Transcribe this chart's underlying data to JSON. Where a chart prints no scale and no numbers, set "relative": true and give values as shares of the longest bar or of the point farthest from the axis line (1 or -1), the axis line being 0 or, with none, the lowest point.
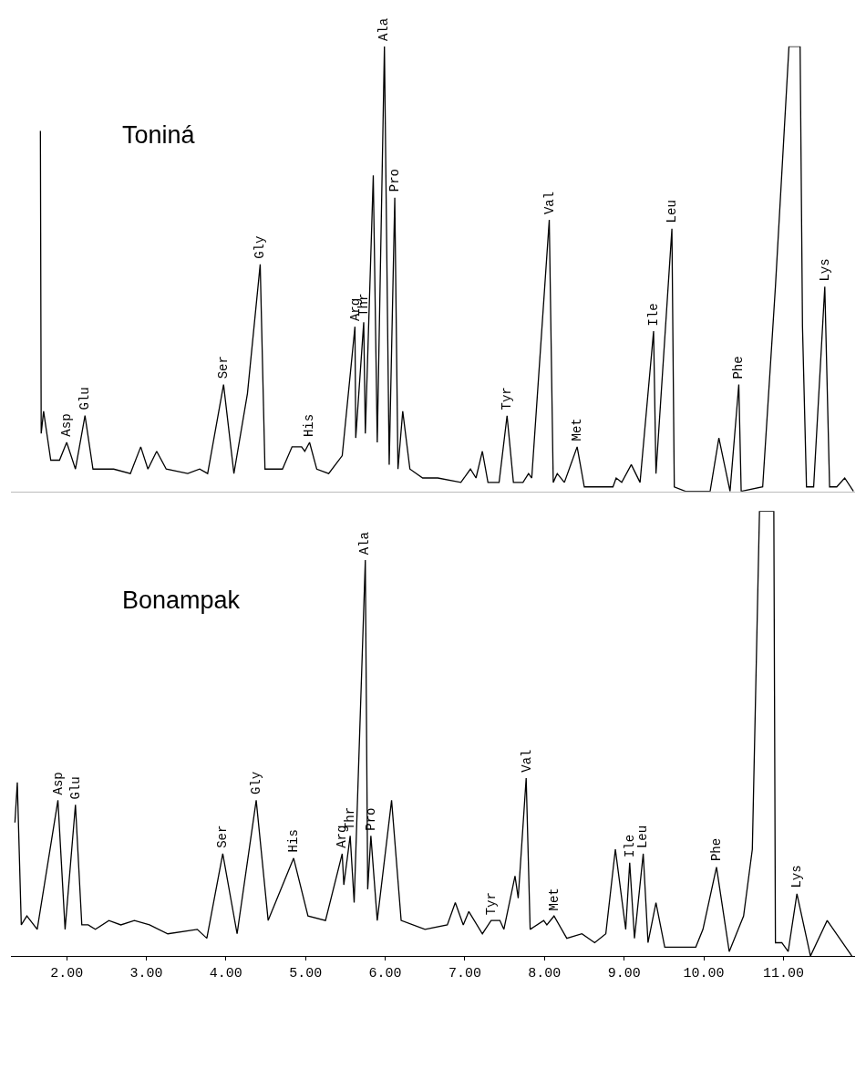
{
  "chart_data": [
    {
      "type": "line",
      "title": "Toniná",
      "relative": true,
      "color": "#000000",
      "xlim": [
        1.3,
        11.9
      ],
      "tick_labels": false,
      "x": [
        1.67,
        1.68,
        1.71,
        1.8,
        1.91,
        2.0,
        2.11,
        2.23,
        2.33,
        2.59,
        2.8,
        2.93,
        3.02,
        3.13,
        3.25,
        3.52,
        3.67,
        3.77,
        3.97,
        4.1,
        4.27,
        4.43,
        4.49,
        4.71,
        4.83,
        4.95,
        4.99,
        5.05,
        5.14,
        5.29,
        5.46,
        5.62,
        5.63,
        5.73,
        5.75,
        5.85,
        5.9,
        5.99,
        6.05,
        6.12,
        6.16,
        6.22,
        6.31,
        6.47,
        6.66,
        6.95,
        7.07,
        7.14,
        7.22,
        7.29,
        7.43,
        7.53,
        7.61,
        7.73,
        7.8,
        7.84,
        8.06,
        8.11,
        8.16,
        8.25,
        8.41,
        8.5,
        8.59,
        8.86,
        8.9,
        8.97,
        9.09,
        9.2,
        9.37,
        9.4,
        9.6,
        9.63,
        9.77,
        10.08,
        10.19,
        10.33,
        10.44,
        10.47,
        10.74,
        10.9,
        11.07,
        11.21,
        11.24,
        11.29,
        11.38,
        11.52,
        11.58,
        11.67,
        11.77,
        11.88
      ],
      "values": [
        0.81,
        0.13,
        0.18,
        0.07,
        0.07,
        0.11,
        0.05,
        0.17,
        0.05,
        0.05,
        0.04,
        0.1,
        0.05,
        0.09,
        0.05,
        0.04,
        0.05,
        0.04,
        0.24,
        0.04,
        0.22,
        0.51,
        0.05,
        0.05,
        0.1,
        0.1,
        0.09,
        0.11,
        0.05,
        0.04,
        0.08,
        0.37,
        0.12,
        0.38,
        0.13,
        0.71,
        0.11,
        1,
        0.06,
        0.66,
        0.05,
        0.18,
        0.05,
        0.03,
        0.03,
        0.02,
        0.05,
        0.03,
        0.09,
        0.02,
        0.02,
        0.17,
        0.02,
        0.02,
        0.04,
        0.03,
        0.61,
        0.02,
        0.04,
        0.02,
        0.1,
        0.01,
        0.01,
        0.01,
        0.03,
        0.02,
        0.06,
        0.02,
        0.36,
        0.04,
        0.59,
        0.01,
        0,
        0,
        0.12,
        0,
        0.24,
        0,
        0.01,
        0.46,
        1,
        1,
        0.37,
        0.01,
        0.01,
        0.46,
        0.01,
        0.01,
        0.03,
        0
      ],
      "annotations": [
        {
          "text": "Asp",
          "x": 2.0,
          "y": 0.11
        },
        {
          "text": "Glu",
          "x": 2.23,
          "y": 0.17
        },
        {
          "text": "Ser",
          "x": 3.97,
          "y": 0.24
        },
        {
          "text": "Gly",
          "x": 4.43,
          "y": 0.51
        },
        {
          "text": "His",
          "x": 5.05,
          "y": 0.11
        },
        {
          "text": "Arg",
          "x": 5.62,
          "y": 0.37
        },
        {
          "text": "Thr",
          "x": 5.73,
          "y": 0.38
        },
        {
          "text": "Ala",
          "x": 5.99,
          "y": 1
        },
        {
          "text": "Pro",
          "x": 6.12,
          "y": 0.66
        },
        {
          "text": "Tyr",
          "x": 7.53,
          "y": 0.17
        },
        {
          "text": "Val",
          "x": 8.06,
          "y": 0.61
        },
        {
          "text": "Met",
          "x": 8.41,
          "y": 0.1
        },
        {
          "text": "Ile",
          "x": 9.37,
          "y": 0.36
        },
        {
          "text": "Leu",
          "x": 9.6,
          "y": 0.59
        },
        {
          "text": "Phe",
          "x": 10.44,
          "y": 0.24
        },
        {
          "text": "Lys",
          "x": 11.52,
          "y": 0.46
        }
      ]
    },
    {
      "type": "line",
      "title": "Bonampak",
      "relative": true,
      "color": "#000000",
      "xlim": [
        1.3,
        11.9
      ],
      "tick_labels": "x",
      "xticks": [
        {
          "value": 2,
          "label": "2.00"
        },
        {
          "value": 3,
          "label": "3.00"
        },
        {
          "value": 4,
          "label": "4.00"
        },
        {
          "value": 5,
          "label": "5.00"
        },
        {
          "value": 6,
          "label": "6.00"
        },
        {
          "value": 7,
          "label": "7.00"
        },
        {
          "value": 8,
          "label": "8.00"
        },
        {
          "value": 9,
          "label": "9.00"
        },
        {
          "value": 10,
          "label": "10.00"
        },
        {
          "value": 11,
          "label": "11.00"
        }
      ],
      "x": [
        1.35,
        1.38,
        1.43,
        1.5,
        1.63,
        1.89,
        1.98,
        2.11,
        2.19,
        2.27,
        2.36,
        2.53,
        2.68,
        2.85,
        3.04,
        3.27,
        3.64,
        3.76,
        3.96,
        4.14,
        4.38,
        4.53,
        4.85,
        5.03,
        5.25,
        5.46,
        5.48,
        5.56,
        5.61,
        5.75,
        5.78,
        5.82,
        5.9,
        6.08,
        6.2,
        6.5,
        6.78,
        6.88,
        6.98,
        7.05,
        7.22,
        7.33,
        7.44,
        7.49,
        7.63,
        7.67,
        7.77,
        7.82,
        7.99,
        8.03,
        8.12,
        8.28,
        8.47,
        8.63,
        8.77,
        8.89,
        9.02,
        9.07,
        9.13,
        9.24,
        9.3,
        9.4,
        9.51,
        9.9,
        9.99,
        10.16,
        10.32,
        10.5,
        10.61,
        10.7,
        10.88,
        10.9,
        10.98,
        11.06,
        11.17,
        11.34,
        11.55,
        11.86
      ],
      "values": [
        0.3,
        0.39,
        0.07,
        0.09,
        0.06,
        0.35,
        0.06,
        0.34,
        0.07,
        0.07,
        0.06,
        0.08,
        0.07,
        0.08,
        0.07,
        0.05,
        0.06,
        0.04,
        0.23,
        0.05,
        0.35,
        0.08,
        0.22,
        0.09,
        0.08,
        0.23,
        0.16,
        0.27,
        0.12,
        0.89,
        0.15,
        0.27,
        0.08,
        0.35,
        0.08,
        0.06,
        0.07,
        0.12,
        0.07,
        0.1,
        0.05,
        0.08,
        0.08,
        0.06,
        0.18,
        0.13,
        0.4,
        0.06,
        0.08,
        0.07,
        0.09,
        0.04,
        0.05,
        0.03,
        0.05,
        0.24,
        0.06,
        0.21,
        0.04,
        0.23,
        0.03,
        0.12,
        0.02,
        0.02,
        0.06,
        0.2,
        0.01,
        0.09,
        0.24,
        1,
        1,
        0.03,
        0.03,
        0.01,
        0.14,
        0,
        0.08,
        0
      ],
      "annotations": [
        {
          "text": "Asp",
          "x": 1.89,
          "y": 0.35
        },
        {
          "text": "Glu",
          "x": 2.11,
          "y": 0.34
        },
        {
          "text": "Ser",
          "x": 3.96,
          "y": 0.23
        },
        {
          "text": "Gly",
          "x": 4.38,
          "y": 0.35
        },
        {
          "text": "His",
          "x": 4.85,
          "y": 0.22
        },
        {
          "text": "Arg",
          "x": 5.46,
          "y": 0.23
        },
        {
          "text": "Thr",
          "x": 5.56,
          "y": 0.27
        },
        {
          "text": "Ala",
          "x": 5.75,
          "y": 0.89
        },
        {
          "text": "Pro",
          "x": 5.82,
          "y": 0.27
        },
        {
          "text": "Tyr",
          "x": 7.33,
          "y": 0.08
        },
        {
          "text": "Val",
          "x": 7.77,
          "y": 0.4
        },
        {
          "text": "Met",
          "x": 8.12,
          "y": 0.09
        },
        {
          "text": "Ile",
          "x": 9.07,
          "y": 0.21
        },
        {
          "text": "Leu",
          "x": 9.24,
          "y": 0.23
        },
        {
          "text": "Phe",
          "x": 10.16,
          "y": 0.2
        },
        {
          "text": "Lys",
          "x": 11.17,
          "y": 0.14
        }
      ]
    }
  ]
}
